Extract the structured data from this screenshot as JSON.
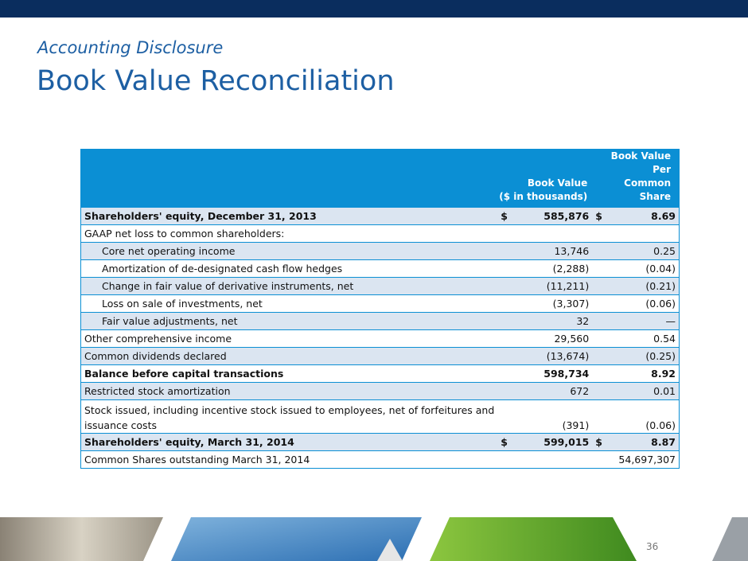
{
  "header": {
    "subtitle": "Accounting Disclosure",
    "title": "Book Value Reconciliation"
  },
  "table": {
    "columns": [
      [
        "Book Value",
        "($ in thousands)"
      ],
      [
        "Book Value Per",
        "Common Share"
      ]
    ],
    "rows": [
      [
        "Shareholders' equity, December 31, 2013",
        "$",
        "585,876",
        "$",
        "8.69"
      ],
      [
        "GAAP net loss to common shareholders:"
      ],
      [
        "Core net operating income",
        "13,746",
        "0.25"
      ],
      [
        "Amortization of de-designated cash flow hedges",
        "(2,288)",
        "(0.04)"
      ],
      [
        "Change in fair value of derivative instruments, net",
        "(11,211)",
        "(0.21)"
      ],
      [
        "Loss on sale of investments, net",
        "(3,307)",
        "(0.06)"
      ],
      [
        "Fair value adjustments, net",
        "32",
        "—"
      ],
      [
        "Other comprehensive income",
        "29,560",
        "0.54"
      ],
      [
        "Common dividends declared",
        "(13,674)",
        "(0.25)"
      ],
      [
        "Balance before capital transactions",
        "598,734",
        "8.92"
      ],
      [
        "Restricted stock amortization",
        "672",
        "0.01"
      ],
      [
        [
          "Stock issued, including incentive stock issued to employees, net of forfeitures and",
          "issuance costs"
        ],
        "(391)",
        "(0.06)"
      ],
      [
        "Shareholders' equity, March 31, 2014",
        "$",
        "599,015",
        "$",
        "8.87"
      ],
      [
        "Common Shares outstanding March 31, 2014",
        "54,697,307"
      ]
    ]
  },
  "footer": {
    "page": "36"
  }
}
